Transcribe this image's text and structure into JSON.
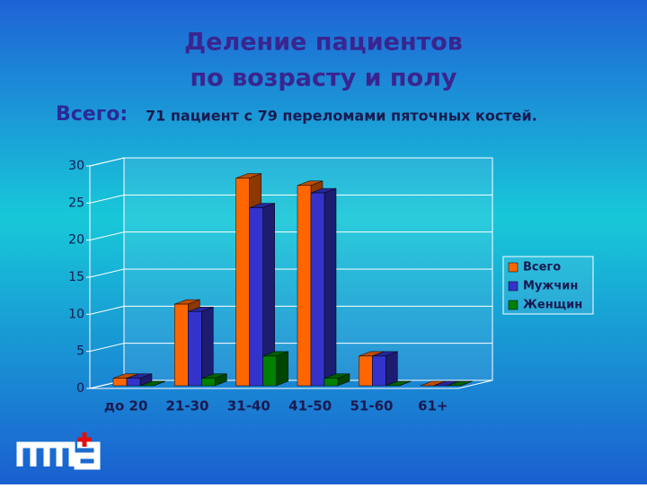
{
  "title_lines": [
    "Деление пациентов",
    "по возрасту и полу"
  ],
  "summary": {
    "label": "Всего:",
    "text": "71 пациент с 79 переломами пяточных костей."
  },
  "chart_data": {
    "type": "bar3d",
    "categories": [
      "до 20",
      "21-30",
      "31-40",
      "41-50",
      "51-60",
      "61+"
    ],
    "series": [
      {
        "name": "Всего",
        "color": "#ff6600",
        "values": [
          1,
          11,
          28,
          27,
          4,
          0
        ]
      },
      {
        "name": "Мужчин",
        "color": "#3333cc",
        "values": [
          1,
          10,
          24,
          26,
          4,
          0
        ]
      },
      {
        "name": "Женщин",
        "color": "#008000",
        "values": [
          0,
          1,
          4,
          1,
          0,
          0
        ]
      }
    ],
    "ylim": [
      0,
      30
    ],
    "yticks": [
      0,
      5,
      10,
      15,
      20,
      25,
      30
    ],
    "grid": true,
    "legend": "right"
  }
}
